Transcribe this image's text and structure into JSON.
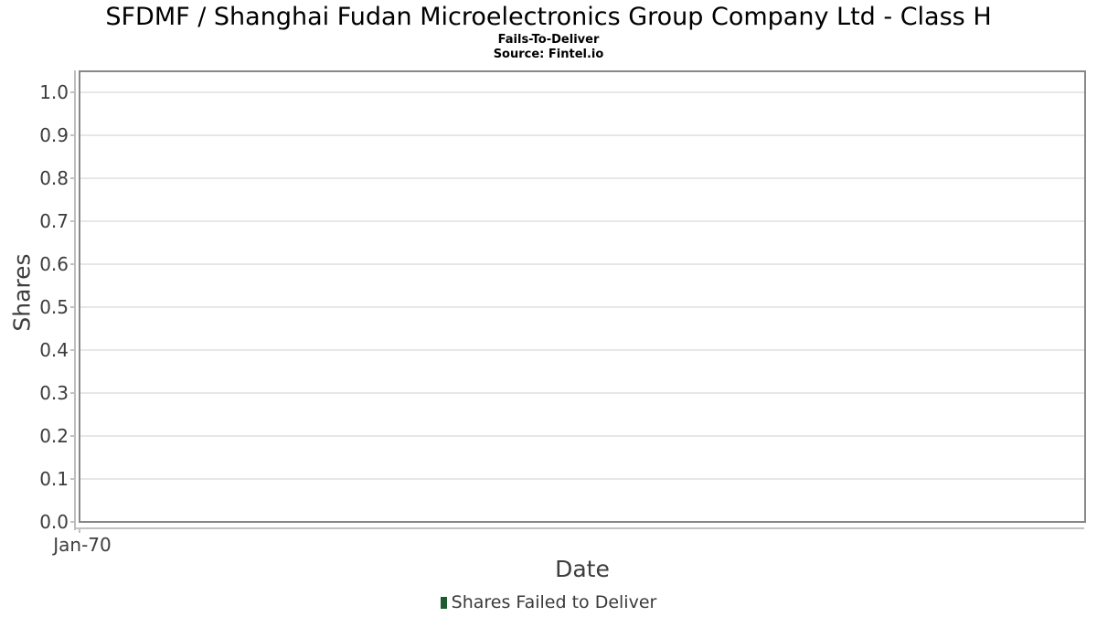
{
  "chart_data": {
    "type": "bar",
    "title": "SFDMF / Shanghai Fudan Microelectronics Group Company Ltd - Class H",
    "subtitle": "Fails-To-Deliver",
    "source": "Source: Fintel.io",
    "xlabel": "Date",
    "ylabel": "Shares",
    "x_tick_labels": [
      "Jan-70"
    ],
    "y_ticks": [
      0.0,
      0.1,
      0.2,
      0.3,
      0.4,
      0.5,
      0.6,
      0.7,
      0.8,
      0.9,
      1.0
    ],
    "ylim": [
      0,
      1.05
    ],
    "grid": "horizontal",
    "legend_position": "bottom",
    "legend": [
      {
        "label": "Shares Failed to Deliver",
        "color": "#1e5b33"
      }
    ],
    "series": [
      {
        "name": "Shares Failed to Deliver",
        "color": "#1e5b33",
        "x": [],
        "values": []
      }
    ]
  },
  "colors": {
    "title_text": "#000000",
    "axis_text": "#3d3d3d",
    "gridline": "#e7e7e7",
    "plot_frame": "#888888",
    "axis_line": "#c2c2c2",
    "legend_marker": "#1e5b33",
    "background": "#ffffff"
  }
}
